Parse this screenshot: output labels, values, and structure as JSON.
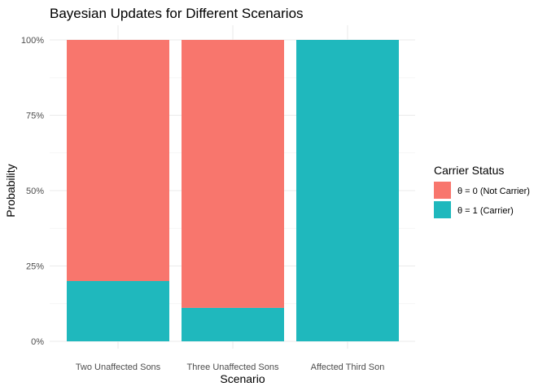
{
  "chart_data": {
    "type": "bar",
    "stacked": true,
    "title": "Bayesian Updates for Different Scenarios",
    "xlabel": "Scenario",
    "ylabel": "Probability",
    "categories": [
      "Two Unaffected Sons",
      "Three Unaffected Sons",
      "Affected Third Son"
    ],
    "ylim": [
      0,
      1
    ],
    "yticks": [
      0,
      0.25,
      0.5,
      0.75,
      1
    ],
    "ytick_labels": [
      "0%",
      "25%",
      "50%",
      "75%",
      "100%"
    ],
    "series": [
      {
        "name": "θ = 0 (Not Carrier)",
        "values": [
          0.8,
          0.889,
          0.0
        ],
        "color": "#f8766d"
      },
      {
        "name": "θ = 1 (Carrier)",
        "values": [
          0.2,
          0.111,
          1.0
        ],
        "color": "#1fb8bd"
      }
    ],
    "legend": {
      "title": "Carrier Status",
      "position": "right"
    },
    "grid": true
  }
}
